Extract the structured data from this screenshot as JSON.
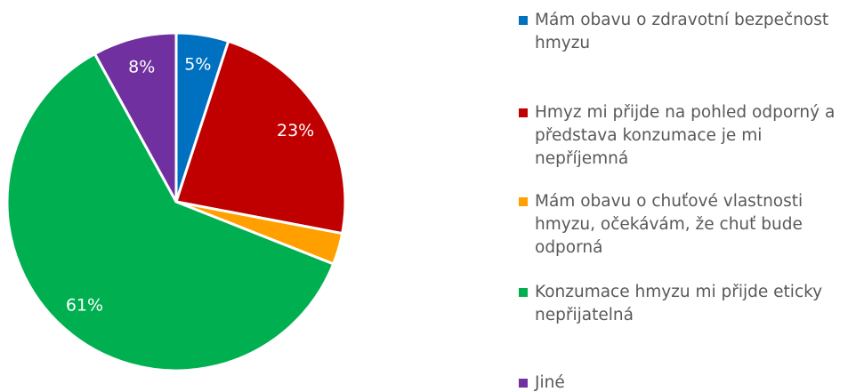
{
  "chart_data": {
    "type": "pie",
    "categories": [
      "Mám obavu o zdravotní bezpečnost hmyzu",
      "Hmyz mi přijde na pohled odporný a představa konzumace je mi nepříjemná",
      "Mám obavu o chuťové vlastnosti hmyzu, očekávám, že chuť bude odporná",
      "Konzumace hmyzu mi přijde eticky nepřijatelná",
      "Jiné"
    ],
    "values": [
      5,
      23,
      3,
      61,
      8
    ],
    "value_labels": [
      "5%",
      "23%",
      null,
      "61%",
      "8%"
    ],
    "colors": [
      "#0070c0",
      "#c00000",
      "#ff9f00",
      "#00b050",
      "#7030a0"
    ],
    "legend": "right"
  }
}
